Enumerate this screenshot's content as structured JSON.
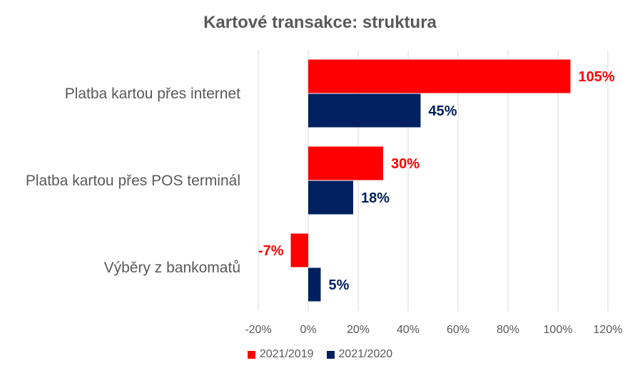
{
  "chart_data": {
    "type": "bar",
    "orientation": "horizontal",
    "title": "Kartové transakce: struktura",
    "categories": [
      "Platba kartou přes internet",
      "Platba kartou přes POS terminál",
      "Výběry z bankomatů"
    ],
    "series": [
      {
        "name": "2021/2019",
        "color": "#ff0000",
        "values": [
          105,
          30,
          -7
        ],
        "labels": [
          "105%",
          "30%",
          "-7%"
        ]
      },
      {
        "name": "2021/2020",
        "color": "#002060",
        "values": [
          45,
          18,
          5
        ],
        "labels": [
          "45%",
          "18%",
          "5%"
        ]
      }
    ],
    "xlim": [
      -20,
      120
    ],
    "xticks": [
      -20,
      0,
      20,
      40,
      60,
      80,
      100,
      120
    ],
    "xtick_labels": [
      "-20%",
      "0%",
      "20%",
      "40%",
      "60%",
      "80%",
      "100%",
      "120%"
    ],
    "grid": true,
    "legend_position": "bottom"
  }
}
